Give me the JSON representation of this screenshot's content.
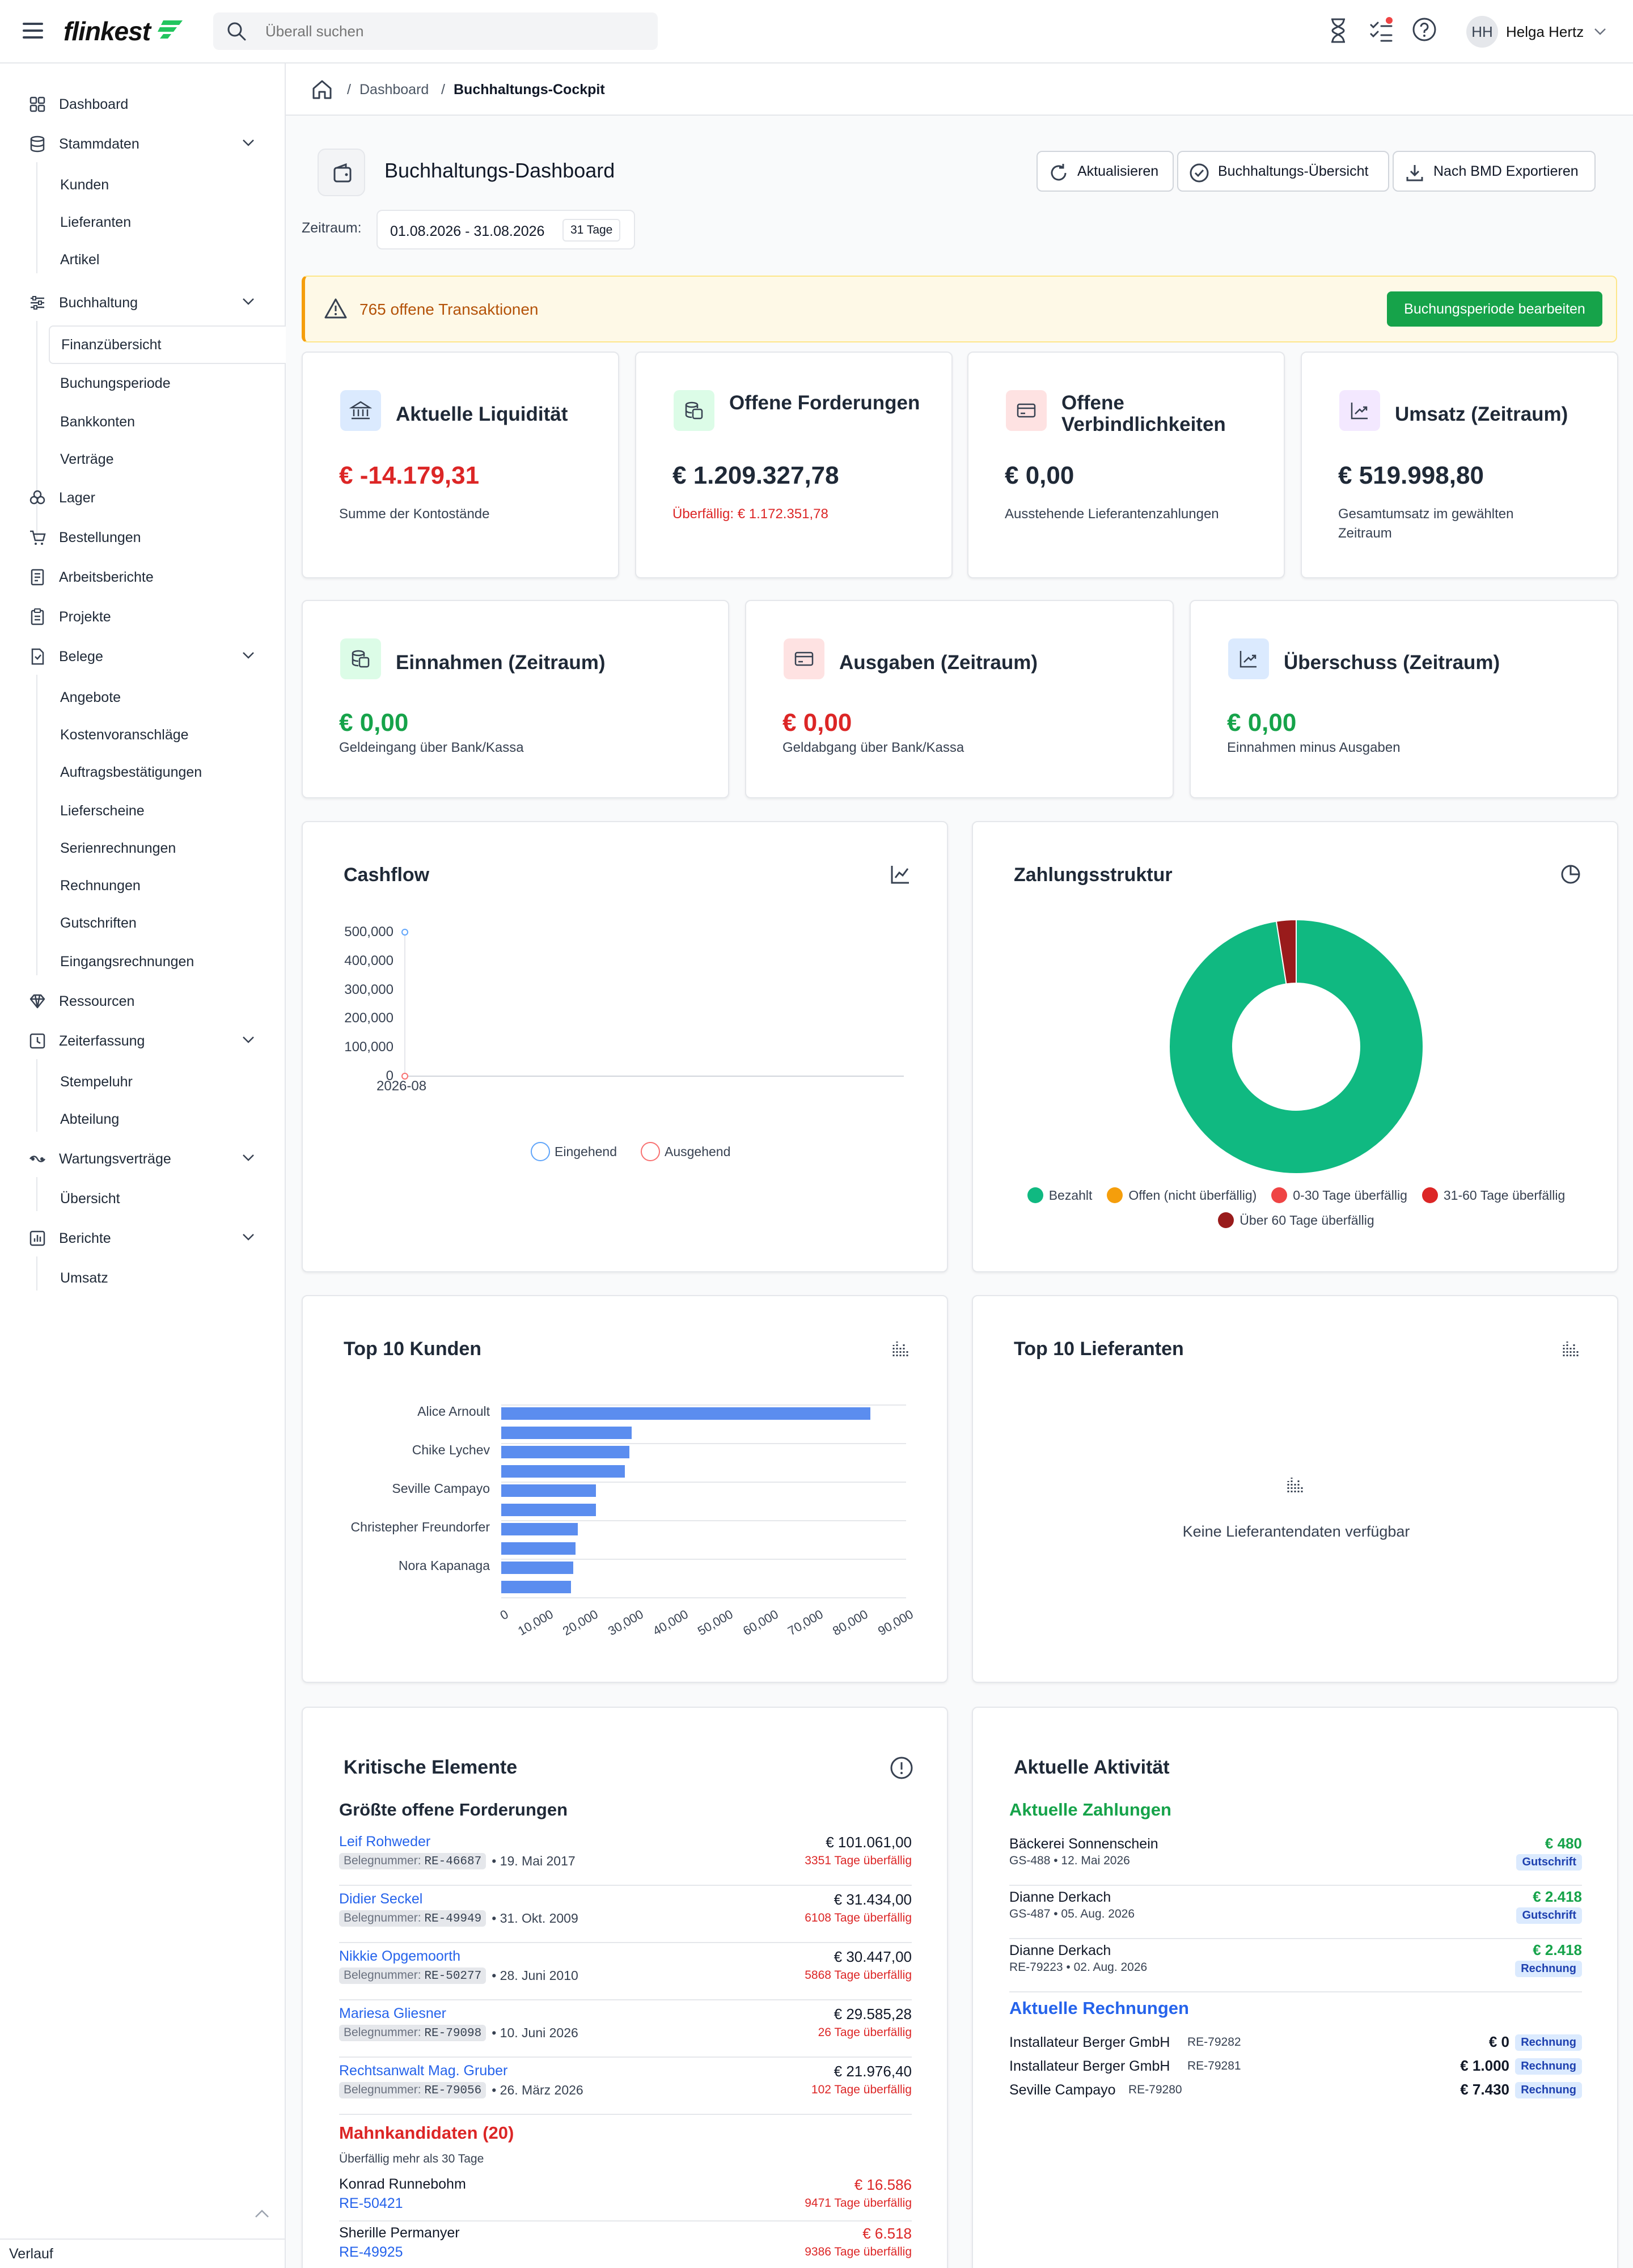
{
  "header": {
    "logo": "flinkest",
    "search_placeholder": "Überall suchen",
    "user_initials": "HH",
    "user_name": "Helga Hertz",
    "icons": [
      "hamburger-icon",
      "hourglass-icon",
      "tasks-icon",
      "help-icon",
      "chevron-down-icon"
    ]
  },
  "sidebar": {
    "items": [
      {
        "label": "Dashboard",
        "icon": "dashboard-icon"
      },
      {
        "label": "Stammdaten",
        "icon": "database-icon",
        "children": [
          "Kunden",
          "Lieferanten",
          "Artikel"
        ]
      },
      {
        "label": "Buchhaltung",
        "icon": "sliders-icon",
        "children": [
          "Finanzübersicht",
          "Buchungsperiode",
          "Bankkonten",
          "Verträge"
        ],
        "active_child": "Finanzübersicht"
      },
      {
        "label": "Lager",
        "icon": "boxes-icon"
      },
      {
        "label": "Bestellungen",
        "icon": "cart-icon"
      },
      {
        "label": "Arbeitsberichte",
        "icon": "report-icon"
      },
      {
        "label": "Projekte",
        "icon": "clipboard-icon"
      },
      {
        "label": "Belege",
        "icon": "document-icon",
        "children": [
          "Angebote",
          "Kostenvoranschläge",
          "Auftragsbestätigungen",
          "Lieferscheine",
          "Serienrechnungen",
          "Rechnungen",
          "Gutschriften",
          "Eingangsrechnungen"
        ]
      },
      {
        "label": "Ressourcen",
        "icon": "gem-icon"
      },
      {
        "label": "Zeiterfassung",
        "icon": "clock-icon",
        "children": [
          "Stempeluhr",
          "Abteilung"
        ]
      },
      {
        "label": "Wartungsverträge",
        "icon": "wrench-icon",
        "children": [
          "Übersicht"
        ]
      },
      {
        "label": "Berichte",
        "icon": "chart-icon",
        "children": [
          "Umsatz"
        ]
      }
    ],
    "footer": "Verlauf"
  },
  "breadcrumb": {
    "items": [
      "Dashboard",
      "Buchhaltungs-Cockpit"
    ]
  },
  "page": {
    "title": "Buchhaltungs-Dashboard",
    "buttons": [
      "Aktualisieren",
      "Buchhaltungs-Übersicht",
      "Nach BMD Exportieren"
    ],
    "zeitraum_label": "Zeitraum:",
    "zeitraum_value": "01.08.2026 - 31.08.2026",
    "zeitraum_days": "31 Tage"
  },
  "alert": {
    "text": "765 offene Transaktionen",
    "button": "Buchungsperiode bearbeiten"
  },
  "kpis": [
    {
      "title": "Aktuelle Liquidität",
      "value": "€ -14.179,31",
      "sub": "Summe der Kontostände",
      "color": "#dc2626"
    },
    {
      "title": "Offene Forderungen",
      "value": "€ 1.209.327,78",
      "sub": "Überfällig: € 1.172.351,78",
      "color": "#1f2937"
    },
    {
      "title": "Offene Verbindlichkeiten",
      "value": "€ 0,00",
      "sub": "Ausstehende Lieferantenzahlungen",
      "color": "#1f2937"
    },
    {
      "title": "Umsatz (Zeitraum)",
      "value": "€ 519.998,80",
      "sub": "Gesamtumsatz im gewählten Zeitraum",
      "color": "#1f2937"
    }
  ],
  "kpis2": [
    {
      "title": "Einnahmen (Zeitraum)",
      "value": "€ 0,00",
      "sub": "Geldeingang über Bank/Kassa",
      "color": "#16a34a"
    },
    {
      "title": "Ausgaben (Zeitraum)",
      "value": "€ 0,00",
      "sub": "Geldabgang über Bank/Kassa",
      "color": "#dc2626"
    },
    {
      "title": "Überschuss (Zeitraum)",
      "value": "€ 0,00",
      "sub": "Einnahmen minus Ausgaben",
      "color": "#16a34a"
    }
  ],
  "charts": {
    "cashflow_title": "Cashflow",
    "zahlung_title": "Zahlungsstruktur",
    "kunden_title": "Top 10 Kunden",
    "lief_title": "Top 10 Lieferanten",
    "lief_empty": "Keine Lieferantendaten verfügbar"
  },
  "chart_data": [
    {
      "type": "line",
      "title": "Cashflow",
      "x": [
        "2026-08"
      ],
      "series": [
        {
          "name": "Eingehend",
          "values": [
            500000
          ],
          "color": "#60a5fa"
        },
        {
          "name": "Ausgehend",
          "values": [
            0
          ],
          "color": "#f87171"
        }
      ],
      "yticks": [
        "500,000",
        "400,000",
        "300,000",
        "200,000",
        "100,000",
        "0"
      ],
      "ylim": [
        0,
        500000
      ],
      "legend": "bottom"
    },
    {
      "type": "pie",
      "title": "Zahlungsstruktur",
      "categories": [
        "Bezahlt",
        "Offen (nicht überfällig)",
        "0-30 Tage überfällig",
        "31-60 Tage überfällig",
        "Über 60 Tage überfällig"
      ],
      "values": [
        97.5,
        0,
        0,
        0,
        2.5
      ],
      "colors": [
        "#10b981",
        "#f59e0b",
        "#ef4444",
        "#dc2626",
        "#991b1b"
      ],
      "legend": "bottom"
    },
    {
      "type": "bar",
      "title": "Top 10 Kunden",
      "orientation": "horizontal",
      "categories": [
        "Alice Arnoult",
        "",
        "Chike Lychev",
        "",
        "Seville Campayo",
        "",
        "Christepher Freundorfer",
        "",
        "Nora Kapanaga",
        ""
      ],
      "values": [
        82000,
        29000,
        28500,
        27500,
        21000,
        21000,
        17000,
        16500,
        16000,
        15500
      ],
      "xticks": [
        "0",
        "10,000",
        "20,000",
        "30,000",
        "40,000",
        "50,000",
        "60,000",
        "70,000",
        "80,000",
        "90,000"
      ],
      "xlim": [
        0,
        90000
      ]
    },
    {
      "type": "bar",
      "title": "Top 10 Lieferanten",
      "values": []
    }
  ],
  "kritisch": {
    "title": "Kritische Elemente",
    "sec1": "Größte offene Forderungen",
    "beleg_label": "Belegnummer:",
    "rows": [
      {
        "name": "Leif Rohweder",
        "nr": "RE-46687",
        "date": "19. Mai 2017",
        "amount": "€ 101.061,00",
        "overdue": "3351 Tage überfällig"
      },
      {
        "name": "Didier Seckel",
        "nr": "RE-49949",
        "date": "31. Okt. 2009",
        "amount": "€ 31.434,00",
        "overdue": "6108 Tage überfällig"
      },
      {
        "name": "Nikkie Opgemoorth",
        "nr": "RE-50277",
        "date": "28. Juni 2010",
        "amount": "€ 30.447,00",
        "overdue": "5868 Tage überfällig"
      },
      {
        "name": "Mariesa Gliesner",
        "nr": "RE-79098",
        "date": "10. Juni 2026",
        "amount": "€ 29.585,28",
        "overdue": "26 Tage überfällig"
      },
      {
        "name": "Rechtsanwalt Mag. Gruber",
        "nr": "RE-79056",
        "date": "26. März 2026",
        "amount": "€ 21.976,40",
        "overdue": "102 Tage überfällig"
      }
    ],
    "sec2": "Mahnkandidaten (20)",
    "sec2_sub": "Überfällig mehr als 30 Tage",
    "mahn": [
      {
        "name": "Konrad Runnebohm",
        "nr": "RE-50421",
        "amount": "€ 16.586",
        "overdue": "9471 Tage überfällig"
      },
      {
        "name": "Sherille Permanyer",
        "nr": "RE-49925",
        "amount": "€ 6.518",
        "overdue": "9386 Tage überfällig"
      }
    ]
  },
  "aktivitaet": {
    "title": "Aktuelle Aktivität",
    "sec1": "Aktuelle Zahlungen",
    "zahlungen": [
      {
        "name": "Bäckerei Sonnenschein",
        "meta": "GS-488 • 12. Mai 2026",
        "amount": "€ 480",
        "badge": "Gutschrift"
      },
      {
        "name": "Dianne Derkach",
        "meta": "GS-487 • 05. Aug. 2026",
        "amount": "€ 2.418",
        "badge": "Gutschrift"
      },
      {
        "name": "Dianne Derkach",
        "meta": "RE-79223 • 02. Aug. 2026",
        "amount": "€ 2.418",
        "badge": "Rechnung"
      }
    ],
    "sec2": "Aktuelle Rechnungen",
    "rechnungen": [
      {
        "name": "Installateur Berger GmbH",
        "nr": "RE-79282",
        "amount": "€ 0",
        "badge": "Rechnung"
      },
      {
        "name": "Installateur Berger GmbH",
        "nr": "RE-79281",
        "amount": "€ 1.000",
        "badge": "Rechnung"
      },
      {
        "name": "Seville Campayo",
        "nr": "RE-79280",
        "amount": "€ 7.430",
        "badge": "Rechnung"
      }
    ]
  }
}
